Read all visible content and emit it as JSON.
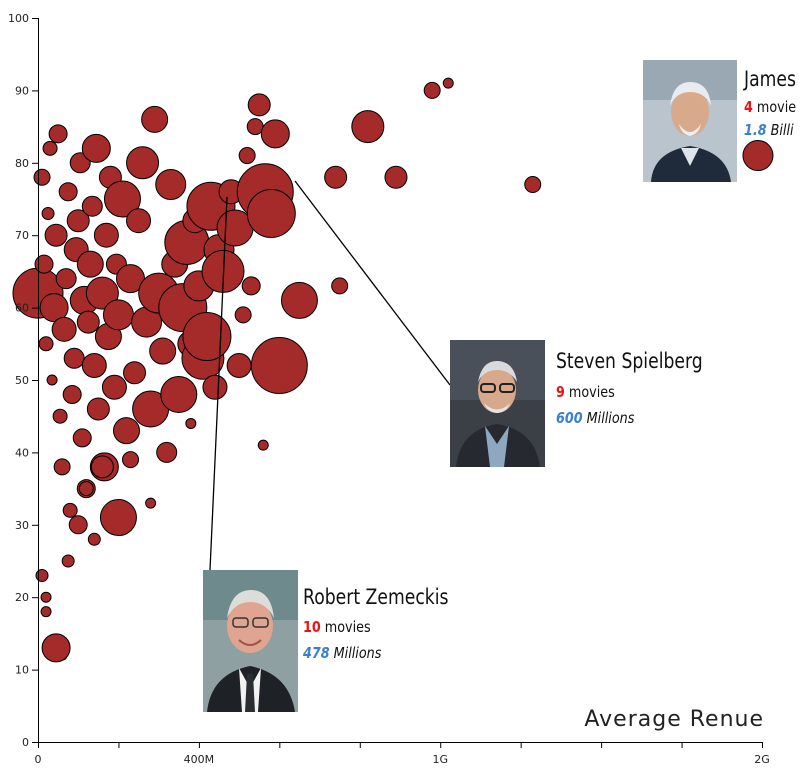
{
  "chart_data": {
    "type": "scatter",
    "xlabel": "Average Renue",
    "ylabel": "",
    "xlim": [
      0,
      1800000000
    ],
    "ylim": [
      0,
      100
    ],
    "x_ticks": [
      {
        "value": 0,
        "label": "0"
      },
      {
        "value": 200000000,
        "label": ""
      },
      {
        "value": 400000000,
        "label": "400M"
      },
      {
        "value": 600000000,
        "label": ""
      },
      {
        "value": 800000000,
        "label": ""
      },
      {
        "value": 1000000000,
        "label": "1G"
      },
      {
        "value": 1200000000,
        "label": ""
      },
      {
        "value": 1400000000,
        "label": ""
      },
      {
        "value": 1600000000,
        "label": ""
      },
      {
        "value": 1800000000,
        "label": "2G"
      }
    ],
    "y_ticks": [
      0,
      10,
      20,
      30,
      40,
      50,
      60,
      70,
      80,
      90,
      100
    ],
    "bubble_color": "#a52a2a",
    "points": [
      [
        0,
        62,
        25
      ],
      [
        10000000,
        78,
        8
      ],
      [
        15000000,
        66,
        9
      ],
      [
        20000000,
        55,
        7
      ],
      [
        25000000,
        73,
        6
      ],
      [
        30000000,
        82,
        7
      ],
      [
        35000000,
        50,
        5
      ],
      [
        40000000,
        60,
        14
      ],
      [
        45000000,
        70,
        11
      ],
      [
        50000000,
        84,
        9
      ],
      [
        55000000,
        45,
        7
      ],
      [
        60000000,
        38,
        8
      ],
      [
        65000000,
        57,
        12
      ],
      [
        70000000,
        64,
        10
      ],
      [
        75000000,
        76,
        9
      ],
      [
        80000000,
        32,
        7
      ],
      [
        85000000,
        48,
        9
      ],
      [
        90000000,
        53,
        10
      ],
      [
        95000000,
        68,
        12
      ],
      [
        100000000,
        72,
        11
      ],
      [
        105000000,
        80,
        10
      ],
      [
        110000000,
        42,
        9
      ],
      [
        115000000,
        61,
        14
      ],
      [
        120000000,
        35,
        9
      ],
      [
        125000000,
        58,
        11
      ],
      [
        130000000,
        66,
        13
      ],
      [
        135000000,
        74,
        10
      ],
      [
        140000000,
        52,
        12
      ],
      [
        145000000,
        82,
        14
      ],
      [
        150000000,
        46,
        11
      ],
      [
        160000000,
        62,
        16
      ],
      [
        165000000,
        38,
        14
      ],
      [
        170000000,
        70,
        12
      ],
      [
        175000000,
        56,
        13
      ],
      [
        180000000,
        78,
        11
      ],
      [
        190000000,
        49,
        12
      ],
      [
        195000000,
        66,
        10
      ],
      [
        200000000,
        59,
        15
      ],
      [
        210000000,
        75,
        18
      ],
      [
        220000000,
        43,
        13
      ],
      [
        230000000,
        64,
        14
      ],
      [
        240000000,
        51,
        11
      ],
      [
        250000000,
        72,
        12
      ],
      [
        260000000,
        80,
        16
      ],
      [
        270000000,
        58,
        15
      ],
      [
        280000000,
        46,
        18
      ],
      [
        290000000,
        86,
        13
      ],
      [
        300000000,
        62,
        20
      ],
      [
        310000000,
        54,
        13
      ],
      [
        320000000,
        40,
        10
      ],
      [
        330000000,
        77,
        15
      ],
      [
        340000000,
        66,
        13
      ],
      [
        350000000,
        48,
        18
      ],
      [
        360000000,
        60,
        24
      ],
      [
        370000000,
        69,
        22
      ],
      [
        380000000,
        55,
        13
      ],
      [
        390000000,
        72,
        12
      ],
      [
        400000000,
        63,
        15
      ],
      [
        410000000,
        53,
        21
      ],
      [
        420000000,
        56,
        24
      ],
      [
        430000000,
        74,
        24
      ],
      [
        440000000,
        49,
        12
      ],
      [
        450000000,
        68,
        15
      ],
      [
        460000000,
        65,
        21
      ],
      [
        480000000,
        76,
        12
      ],
      [
        490000000,
        71,
        18
      ],
      [
        500000000,
        52,
        12
      ],
      [
        510000000,
        59,
        8
      ],
      [
        520000000,
        81,
        8
      ],
      [
        530000000,
        63,
        9
      ],
      [
        540000000,
        85,
        8
      ],
      [
        550000000,
        88,
        11
      ],
      [
        560000000,
        41,
        5
      ],
      [
        565000000,
        76,
        28
      ],
      [
        580000000,
        73,
        24
      ],
      [
        590000000,
        84,
        14
      ],
      [
        600000000,
        52,
        28
      ],
      [
        650000000,
        61,
        18
      ],
      [
        740000000,
        78,
        11
      ],
      [
        750000000,
        63,
        8
      ],
      [
        820000000,
        85,
        16
      ],
      [
        890000000,
        78,
        11
      ],
      [
        980000000,
        90,
        8
      ],
      [
        1020000000,
        91,
        5
      ],
      [
        1230000000,
        77,
        8
      ],
      [
        1790000000,
        81,
        15
      ],
      [
        60000000,
        12,
        5
      ],
      [
        20000000,
        20,
        5
      ],
      [
        45000000,
        13,
        14
      ],
      [
        10000000,
        23,
        6
      ],
      [
        100000000,
        30,
        9
      ],
      [
        200000000,
        31,
        18
      ],
      [
        140000000,
        28,
        6
      ],
      [
        280000000,
        33,
        5
      ],
      [
        380000000,
        44,
        5
      ],
      [
        20000000,
        18,
        5
      ],
      [
        75000000,
        25,
        6
      ],
      [
        120000000,
        35,
        7
      ],
      [
        160000000,
        38,
        11
      ],
      [
        230000000,
        39,
        8
      ]
    ],
    "annotations": [
      {
        "name": "James",
        "movies": "4",
        "movies_suffix": " movie",
        "revenue": "1.8",
        "revenue_suffix": " Billi"
      },
      {
        "name": "Steven Spielberg",
        "movies": "9",
        "movies_suffix": " movies",
        "revenue": "600",
        "revenue_suffix": " Millions"
      },
      {
        "name": "Robert Zemeckis",
        "movies": "10",
        "movies_suffix": " movies",
        "revenue": "478",
        "revenue_suffix": " Millions"
      }
    ]
  }
}
